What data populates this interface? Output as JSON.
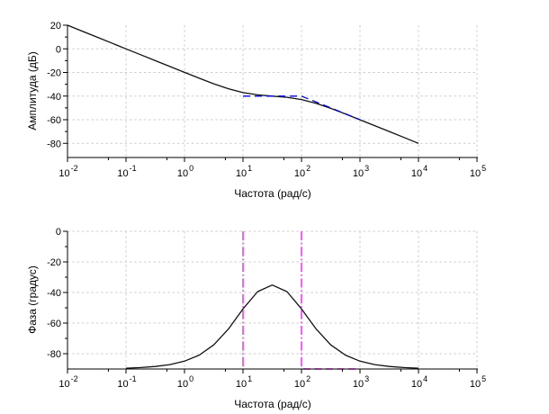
{
  "figure": {
    "background": "#ffffff"
  },
  "chart_data": [
    {
      "id": "magnitude",
      "type": "line",
      "title": "",
      "xlabel": "Частота (рад/с)",
      "ylabel": "Амплитуда (дБ)",
      "x_scale": "log10",
      "xlim_log10": [
        -2,
        5
      ],
      "ylim": [
        -92,
        20
      ],
      "x_tick_exponents": [
        -2,
        -1,
        0,
        1,
        2,
        3,
        4,
        5
      ],
      "x_minor_tick_multiple": 5,
      "y_major_ticks": [
        20,
        0,
        -20,
        -40,
        -60,
        -80
      ],
      "y_minor_ticks": [
        10,
        -10,
        -30,
        -50,
        -70
      ],
      "grid_x_exponents": [
        -1,
        0,
        1,
        2,
        3,
        4,
        5
      ],
      "grid_y_values": [
        0,
        -20,
        -40,
        -60,
        -80
      ],
      "grid_color": "#cccccc",
      "series": [
        {
          "name": "magnitude-exact-curve",
          "color": "#111111",
          "dash": "",
          "width": 1.3,
          "x_log10": [
            -2,
            -1.75,
            -1.5,
            -1.25,
            -1,
            -0.75,
            -0.5,
            -0.25,
            0,
            0.25,
            0.5,
            0.75,
            1,
            1.25,
            1.5,
            1.75,
            2,
            2.25,
            2.5,
            2.75,
            3,
            3.25,
            3.5,
            3.75,
            4
          ],
          "y": [
            20,
            15,
            10,
            5,
            0,
            -5,
            -10,
            -14.99,
            -19.96,
            -24.87,
            -29.59,
            -33.82,
            -37.03,
            -38.94,
            -40.0,
            -41.06,
            -42.97,
            -46.18,
            -50.41,
            -55.13,
            -60.04,
            -65.01,
            -70.0,
            -75.0,
            -80.0
          ]
        },
        {
          "name": "magnitude-asymptote-curve",
          "color": "#0000e6",
          "dash": "8 5",
          "width": 1.3,
          "x_log10": [
            1,
            2,
            3
          ],
          "y": [
            -40,
            -40,
            -60
          ]
        }
      ],
      "annotations": []
    },
    {
      "id": "phase",
      "type": "line",
      "title": "",
      "xlabel": "Частота (рад/с)",
      "ylabel": "Фаза (градус)",
      "x_scale": "log10",
      "xlim_log10": [
        -2,
        5
      ],
      "ylim": [
        -90,
        0
      ],
      "x_tick_exponents": [
        -2,
        -1,
        0,
        1,
        2,
        3,
        4,
        5
      ],
      "x_minor_tick_multiple": 5,
      "y_major_ticks": [
        0,
        -20,
        -40,
        -60,
        -80
      ],
      "y_minor_ticks": [
        -10,
        -30,
        -50,
        -70
      ],
      "grid_x_exponents": [
        -1,
        0,
        1,
        2,
        3,
        4,
        5
      ],
      "grid_y_values": [
        0,
        -20,
        -40,
        -60,
        -80
      ],
      "grid_color": "#cccccc",
      "series": [
        {
          "name": "phase-exact-curve",
          "color": "#111111",
          "dash": "",
          "width": 1.3,
          "x_log10": [
            -1,
            -0.75,
            -0.5,
            -0.25,
            0,
            0.25,
            0.5,
            0.75,
            1,
            1.25,
            1.5,
            1.75,
            2,
            2.25,
            2.5,
            2.75,
            3,
            3.25,
            3.5,
            3.75,
            4
          ],
          "y": [
            -89.48,
            -89.08,
            -88.37,
            -87.1,
            -84.86,
            -80.94,
            -74.26,
            -63.87,
            -50.71,
            -39.43,
            -35.1,
            -39.43,
            -50.71,
            -63.87,
            -74.26,
            -80.94,
            -84.86,
            -87.1,
            -88.37,
            -89.08,
            -89.48
          ]
        }
      ],
      "annotations": [
        {
          "name": "corner-frequency-line-10",
          "type": "vline",
          "x_log10": 1,
          "color": "#ff00ff",
          "dash": "10 3 1.5 3",
          "width": 1.3
        },
        {
          "name": "corner-frequency-line-100",
          "type": "vline",
          "x_log10": 2,
          "color": "#ff00ff",
          "dash": "10 3 1.5 3",
          "width": 1.3
        },
        {
          "name": "phase-floor-segment",
          "type": "hline",
          "y": -90,
          "x_log10_range": [
            2.03,
            2.95
          ],
          "color": "#ff00ff",
          "dash": "8 4.5",
          "width": 1.5
        }
      ]
    }
  ]
}
